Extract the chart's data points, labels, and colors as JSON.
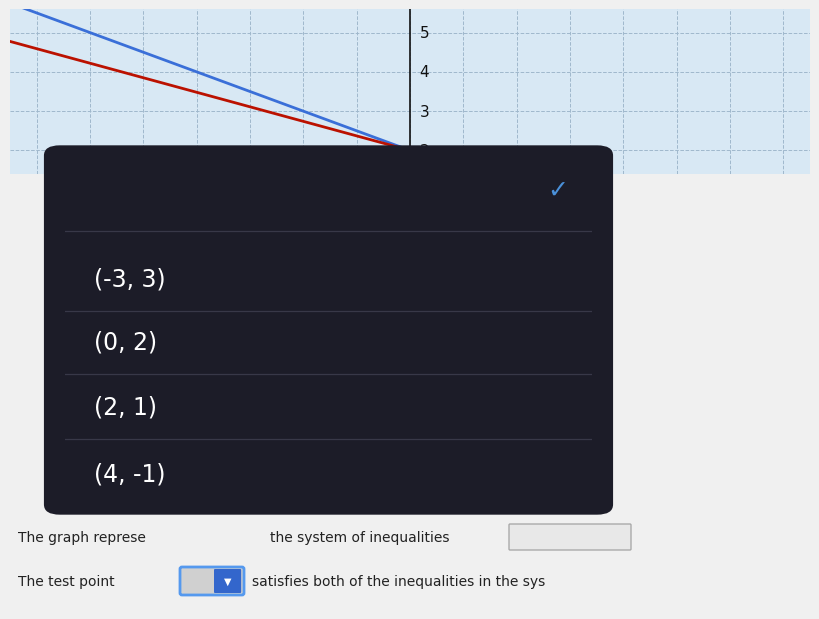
{
  "page_bg": "#f0f0f0",
  "graph_bg": "#d8e8f4",
  "graph_grid_color": "#a0b8cc",
  "blue_line_color": "#3a6fd8",
  "red_line_color": "#bb1100",
  "axis_color": "#111111",
  "y_ticks": [
    2,
    3,
    4,
    5
  ],
  "dropdown_bg": "#1c1c28",
  "dropdown_text_color": "#ffffff",
  "dropdown_items": [
    "(-3, 3)",
    "(0, 2)",
    "(2, 1)",
    "(4, -1)"
  ],
  "checkmark_color": "#4a90d9",
  "divider_color": "#383848",
  "bottom_bg": "#efefef",
  "dropdown_widget_bg": "#d0d0d0",
  "dropdown_widget_border": "#5599ee",
  "dropdown_widget_arrow": "#3366cc",
  "input_box_bg": "#e8e8e8",
  "input_box_border": "#aaaaaa"
}
